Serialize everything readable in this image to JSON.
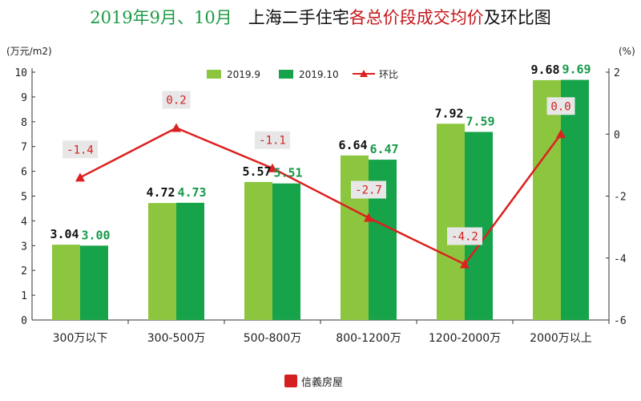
{
  "title": {
    "part1": "2019年9月、10月",
    "part2": "上海二手住宅",
    "part3": "各总价段成交均价",
    "part4": "及环比图"
  },
  "left_axis_unit": "(万元/m2)",
  "right_axis_unit": "(%)",
  "brand": "信義房屋",
  "colors": {
    "series_2019_9": "#8cc63f",
    "series_2019_10": "#16a34a",
    "mom_line": "#dd2020",
    "label_2019_9": "#111111",
    "label_2019_10": "#17994a"
  },
  "chart_data": {
    "type": "bar",
    "categories": [
      "300万以下",
      "300-500万",
      "500-800万",
      "800-1200万",
      "1200-2000万",
      "2000万以上"
    ],
    "series": [
      {
        "name": "2019.9",
        "values": [
          3.04,
          4.72,
          5.57,
          6.64,
          7.92,
          9.68
        ],
        "labels": [
          "3.04",
          "4.72",
          "5.57",
          "6.64",
          "7.92",
          "9.68"
        ]
      },
      {
        "name": "2019.10",
        "values": [
          3.0,
          4.73,
          5.51,
          6.47,
          7.59,
          9.69
        ],
        "labels": [
          "3.00",
          "4.73",
          "5.51",
          "6.47",
          "7.59",
          "9.69"
        ]
      }
    ],
    "line_series": {
      "name": "环比",
      "axis": "right",
      "values": [
        -1.4,
        0.2,
        -1.1,
        -2.7,
        -4.2,
        0.0
      ],
      "labels": [
        "-1.4",
        "0.2",
        "-1.1",
        "-2.7",
        "-4.2",
        "0.0"
      ]
    },
    "ylim": [
      0,
      10
    ],
    "yticks": [
      "0",
      "1",
      "2",
      "3",
      "4",
      "5",
      "6",
      "7",
      "8",
      "9",
      "10"
    ],
    "y2lim": [
      -6,
      2
    ],
    "y2ticks": [
      "-6",
      "-4",
      "-2",
      "0",
      "2"
    ],
    "grid": false,
    "legend_position": "top-center"
  }
}
